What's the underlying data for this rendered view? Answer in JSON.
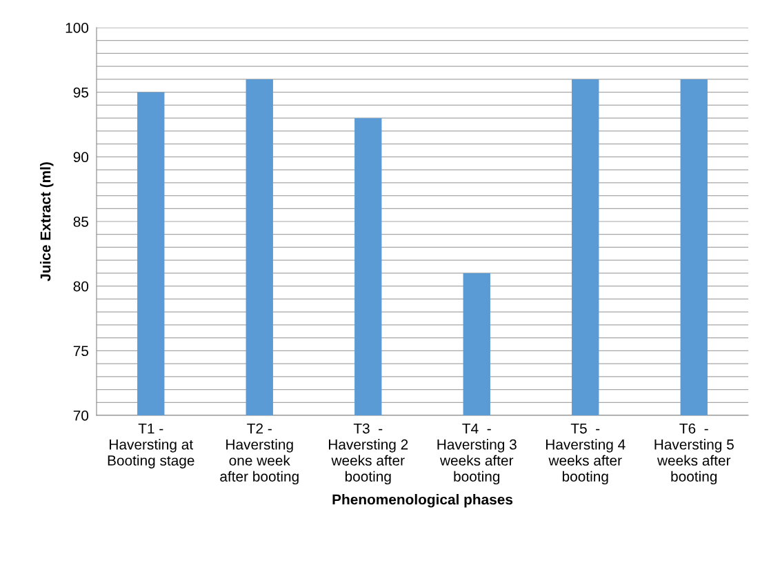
{
  "chart_data": {
    "type": "bar",
    "categories": [
      "T1 -\nHaversting at\nBooting stage",
      "T2 -\nHaversting\none week\nafter booting",
      "T3  -\nHaversting 2\nweeks after\nbooting",
      "T4  -\nHaversting 3\nweeks after\nbooting",
      "T5  -\nHaversting 4\nweeks after\nbooting",
      "T6  -\nHaversting 5\nweeks after\nbooting"
    ],
    "values": [
      95,
      96,
      93,
      81,
      96,
      96
    ],
    "color": "#5b9bd5",
    "xlabel": "Phenomenological phases",
    "ylabel": "Juice Extract (ml)",
    "ylim": [
      70,
      100
    ],
    "yticks": [
      70,
      {
        "value": 71,
        "label": null
      },
      {
        "value": 72,
        "label": null
      },
      {
        "value": 73,
        "label": null
      },
      {
        "value": 74,
        "label": null
      },
      75,
      {
        "value": 76,
        "label": null
      },
      {
        "value": 77,
        "label": null
      },
      {
        "value": 78,
        "label": null
      },
      {
        "value": 79,
        "label": null
      },
      80,
      {
        "value": 81,
        "label": null
      },
      {
        "value": 82,
        "label": null
      },
      {
        "value": 83,
        "label": null
      },
      {
        "value": 84,
        "label": null
      },
      85,
      {
        "value": 86,
        "label": null
      },
      {
        "value": 87,
        "label": null
      },
      {
        "value": 88,
        "label": null
      },
      {
        "value": 89,
        "label": null
      },
      90,
      {
        "value": 91,
        "label": null
      },
      {
        "value": 92,
        "label": null
      },
      {
        "value": 93,
        "label": null
      },
      {
        "value": 94,
        "label": null
      },
      95,
      {
        "value": 96,
        "label": null
      },
      {
        "value": 97,
        "label": null
      },
      {
        "value": 98,
        "label": null
      },
      {
        "value": 99,
        "label": null
      },
      100
    ],
    "grid": "y"
  }
}
